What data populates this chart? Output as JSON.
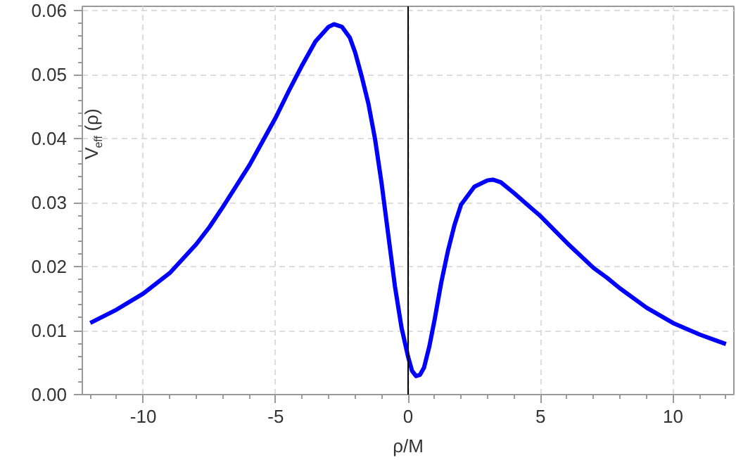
{
  "chart_data": {
    "type": "line",
    "xlabel": "ρ/M",
    "ylabel": "V$_{eff}$(ρ)",
    "x": [
      -12,
      -11,
      -10,
      -9,
      -8,
      -7.5,
      -7,
      -6,
      -5,
      -4.5,
      -4,
      -3.5,
      -3,
      -2.8,
      -2.5,
      -2.2,
      -2,
      -1.75,
      -1.5,
      -1.25,
      -1,
      -0.75,
      -0.5,
      -0.25,
      0,
      0.15,
      0.3,
      0.45,
      0.6,
      0.8,
      1,
      1.25,
      1.5,
      1.75,
      2,
      2.5,
      3,
      3.2,
      3.5,
      4,
      4.5,
      5,
      6,
      7,
      7.5,
      8,
      9,
      10,
      11,
      12
    ],
    "series": [
      {
        "color": "#0000ff",
        "values": [
          0.0112,
          0.0133,
          0.0158,
          0.019,
          0.0235,
          0.0262,
          0.0293,
          0.0358,
          0.0433,
          0.0475,
          0.0515,
          0.0552,
          0.0575,
          0.0579,
          0.0575,
          0.0558,
          0.0535,
          0.0497,
          0.0455,
          0.04,
          0.033,
          0.025,
          0.017,
          0.0105,
          0.0059,
          0.0037,
          0.0029,
          0.0031,
          0.0042,
          0.0075,
          0.0117,
          0.0175,
          0.0224,
          0.0265,
          0.0297,
          0.0325,
          0.0335,
          0.0336,
          0.0332,
          0.0315,
          0.0297,
          0.0279,
          0.0237,
          0.0198,
          0.0183,
          0.0166,
          0.0136,
          0.0112,
          0.0094,
          0.0079
        ]
      }
    ],
    "xlim": [
      -12.3,
      12.3
    ],
    "ylim": [
      0,
      0.0607
    ],
    "xticks": [
      -10,
      -5,
      0,
      5,
      10
    ],
    "yticks": [
      {
        "value": 0,
        "label": "0.00"
      },
      {
        "value": 0.01,
        "label": "0.01"
      },
      {
        "value": 0.02,
        "label": "0.02"
      },
      {
        "value": 0.03,
        "label": "0.03"
      },
      {
        "value": 0.04,
        "label": "0.04"
      },
      {
        "value": 0.05,
        "label": "0.05"
      },
      {
        "value": 0.06,
        "label": "0.06"
      }
    ],
    "grid": true,
    "line_style": "solid",
    "marker": "none",
    "ref_lines": [
      {
        "axis": "x",
        "value": 0,
        "color": "#000000"
      }
    ]
  }
}
